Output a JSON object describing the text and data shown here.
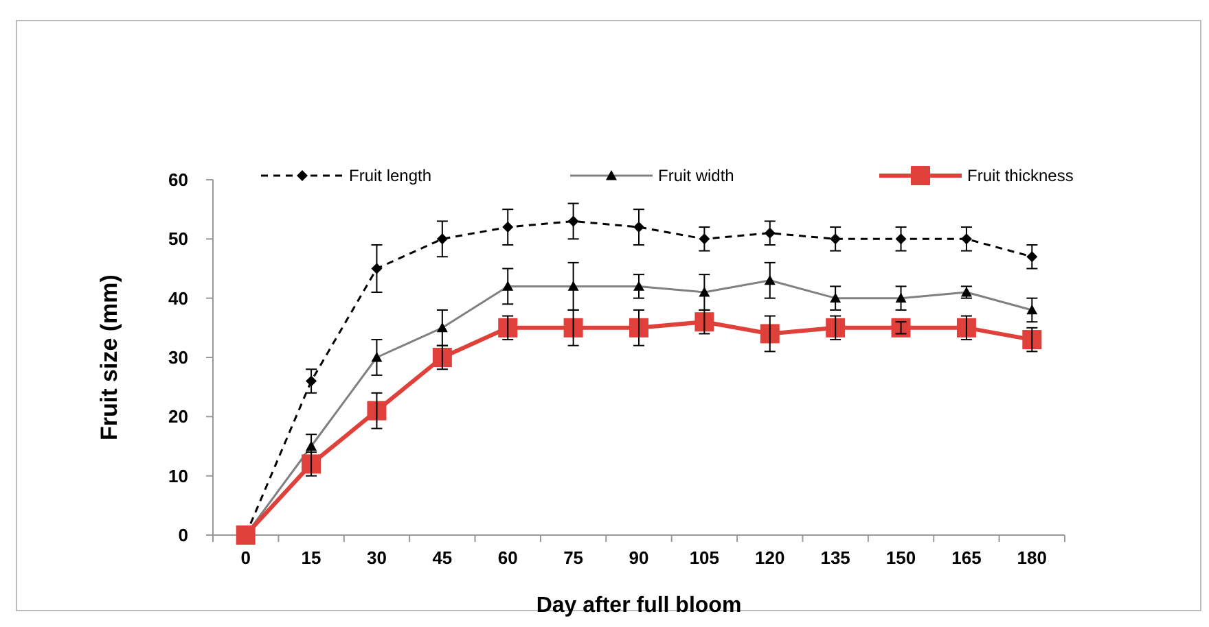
{
  "chart_data": {
    "type": "line",
    "xlabel": "Day after full bloom",
    "ylabel": "Fruit size (mm)",
    "categories": [
      "0",
      "15",
      "30",
      "45",
      "60",
      "75",
      "90",
      "105",
      "120",
      "135",
      "150",
      "165",
      "180"
    ],
    "ylim": [
      0,
      60
    ],
    "yticks": [
      0,
      10,
      20,
      30,
      40,
      50,
      60
    ],
    "grid": false,
    "legend": "top",
    "series": [
      {
        "name": "Fruit length",
        "color": "#000000",
        "marker": "diamond",
        "line_style": "dashed",
        "values": [
          0,
          26,
          45,
          50,
          52,
          53,
          52,
          50,
          51,
          50,
          50,
          50,
          47
        ],
        "errors": [
          null,
          2,
          4,
          3,
          3,
          3,
          3,
          2,
          2,
          2,
          2,
          2,
          2
        ]
      },
      {
        "name": "Fruit width",
        "color": "#808080",
        "marker": "triangle",
        "line_style": "solid",
        "values": [
          0,
          15,
          30,
          35,
          42,
          42,
          42,
          41,
          43,
          40,
          40,
          41,
          38
        ],
        "errors": [
          null,
          2,
          3,
          3,
          3,
          4,
          2,
          3,
          3,
          2,
          2,
          1,
          2
        ]
      },
      {
        "name": "Fruit thickness",
        "color": "#e0403a",
        "marker": "square",
        "line_style": "solid",
        "values": [
          0,
          12,
          21,
          30,
          35,
          35,
          35,
          36,
          34,
          35,
          35,
          35,
          33
        ],
        "errors": [
          null,
          2,
          3,
          2,
          2,
          3,
          3,
          2,
          3,
          2,
          1,
          2,
          2
        ]
      }
    ]
  }
}
